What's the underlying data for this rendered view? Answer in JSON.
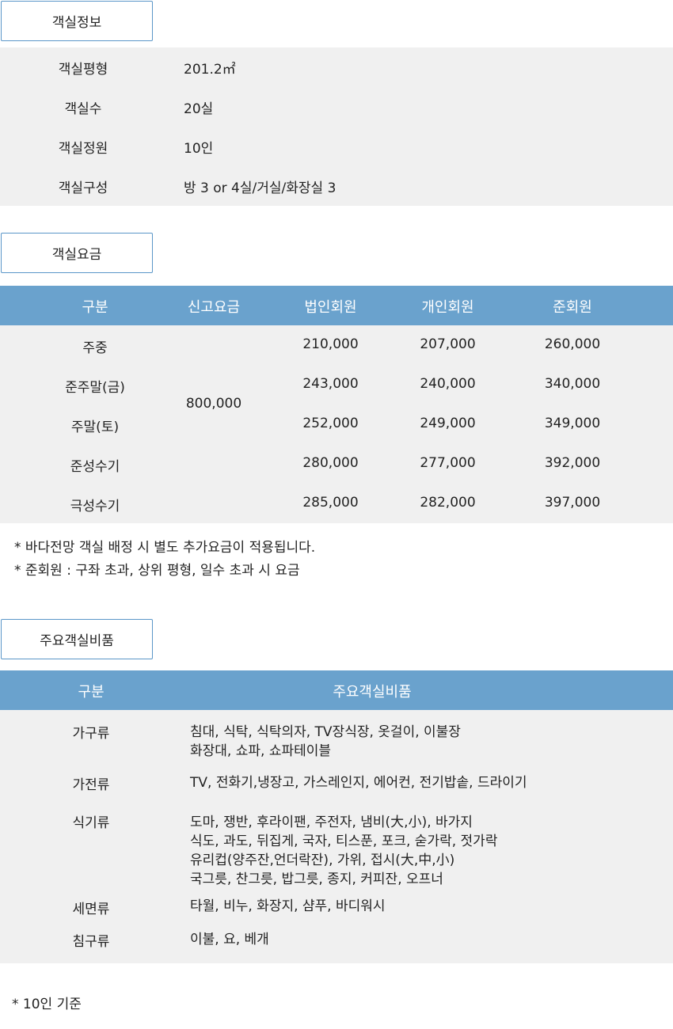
{
  "room_info": {
    "title": "객실정보",
    "rows": [
      {
        "label": "객실평형",
        "value": "201.2㎡"
      },
      {
        "label": "객실수",
        "value": "20실"
      },
      {
        "label": "객실정원",
        "value": "10인"
      },
      {
        "label": "객실구성",
        "value": "방 3 or 4실/거실/화장실 3"
      }
    ]
  },
  "room_rates": {
    "title": "객실요금",
    "headers": [
      "구분",
      "신고요금",
      "법인회원",
      "개인회원",
      "준회원"
    ],
    "reported_rate": "800,000",
    "rows": [
      {
        "label": "주중",
        "corp": "210,000",
        "personal": "207,000",
        "associate": "260,000"
      },
      {
        "label": "준주말(금)",
        "corp": "243,000",
        "personal": "240,000",
        "associate": "340,000"
      },
      {
        "label": "주말(토)",
        "corp": "252,000",
        "personal": "249,000",
        "associate": "349,000"
      },
      {
        "label": "준성수기",
        "corp": "280,000",
        "personal": "277,000",
        "associate": "392,000"
      },
      {
        "label": "극성수기",
        "corp": "285,000",
        "personal": "282,000",
        "associate": "397,000"
      }
    ],
    "notes": [
      "* 바다전망 객실 배정 시 별도 추가요금이 적용됩니다.",
      "* 준회원 : 구좌 초과, 상위 평형, 일수 초과 시 요금"
    ]
  },
  "amenities": {
    "title": "주요객실비품",
    "headers": [
      "구분",
      "주요객실비품"
    ],
    "rows": [
      {
        "label": "가구류",
        "lines": [
          "침대, 식탁, 식탁의자, TV장식장, 옷걸이, 이불장",
          "화장대, 쇼파, 쇼파테이블"
        ]
      },
      {
        "label": "가전류",
        "lines": [
          "TV, 전화기,냉장고, 가스레인지, 에어컨, 전기밥솥, 드라이기"
        ]
      },
      {
        "label": "식기류",
        "lines": [
          "도마, 쟁반, 후라이팬, 주전자, 냄비(大,小), 바가지",
          "식도, 과도, 뒤집게, 국자, 티스푼, 포크, 숟가락, 젓가락",
          "유리컵(양주잔,언더락잔), 가위, 접시(大,中,小)",
          "국그릇, 찬그릇, 밥그릇, 종지, 커피잔, 오프너"
        ]
      },
      {
        "label": "세면류",
        "lines": [
          "타월, 비누, 화장지, 샴푸, 바디워시"
        ]
      },
      {
        "label": "침구류",
        "lines": [
          "이불, 요, 베개"
        ]
      }
    ],
    "footnote": "* 10인 기준"
  },
  "colors": {
    "accent": "#6aa2cd",
    "border": "#5a96c8",
    "panel": "#f0f0f0"
  }
}
